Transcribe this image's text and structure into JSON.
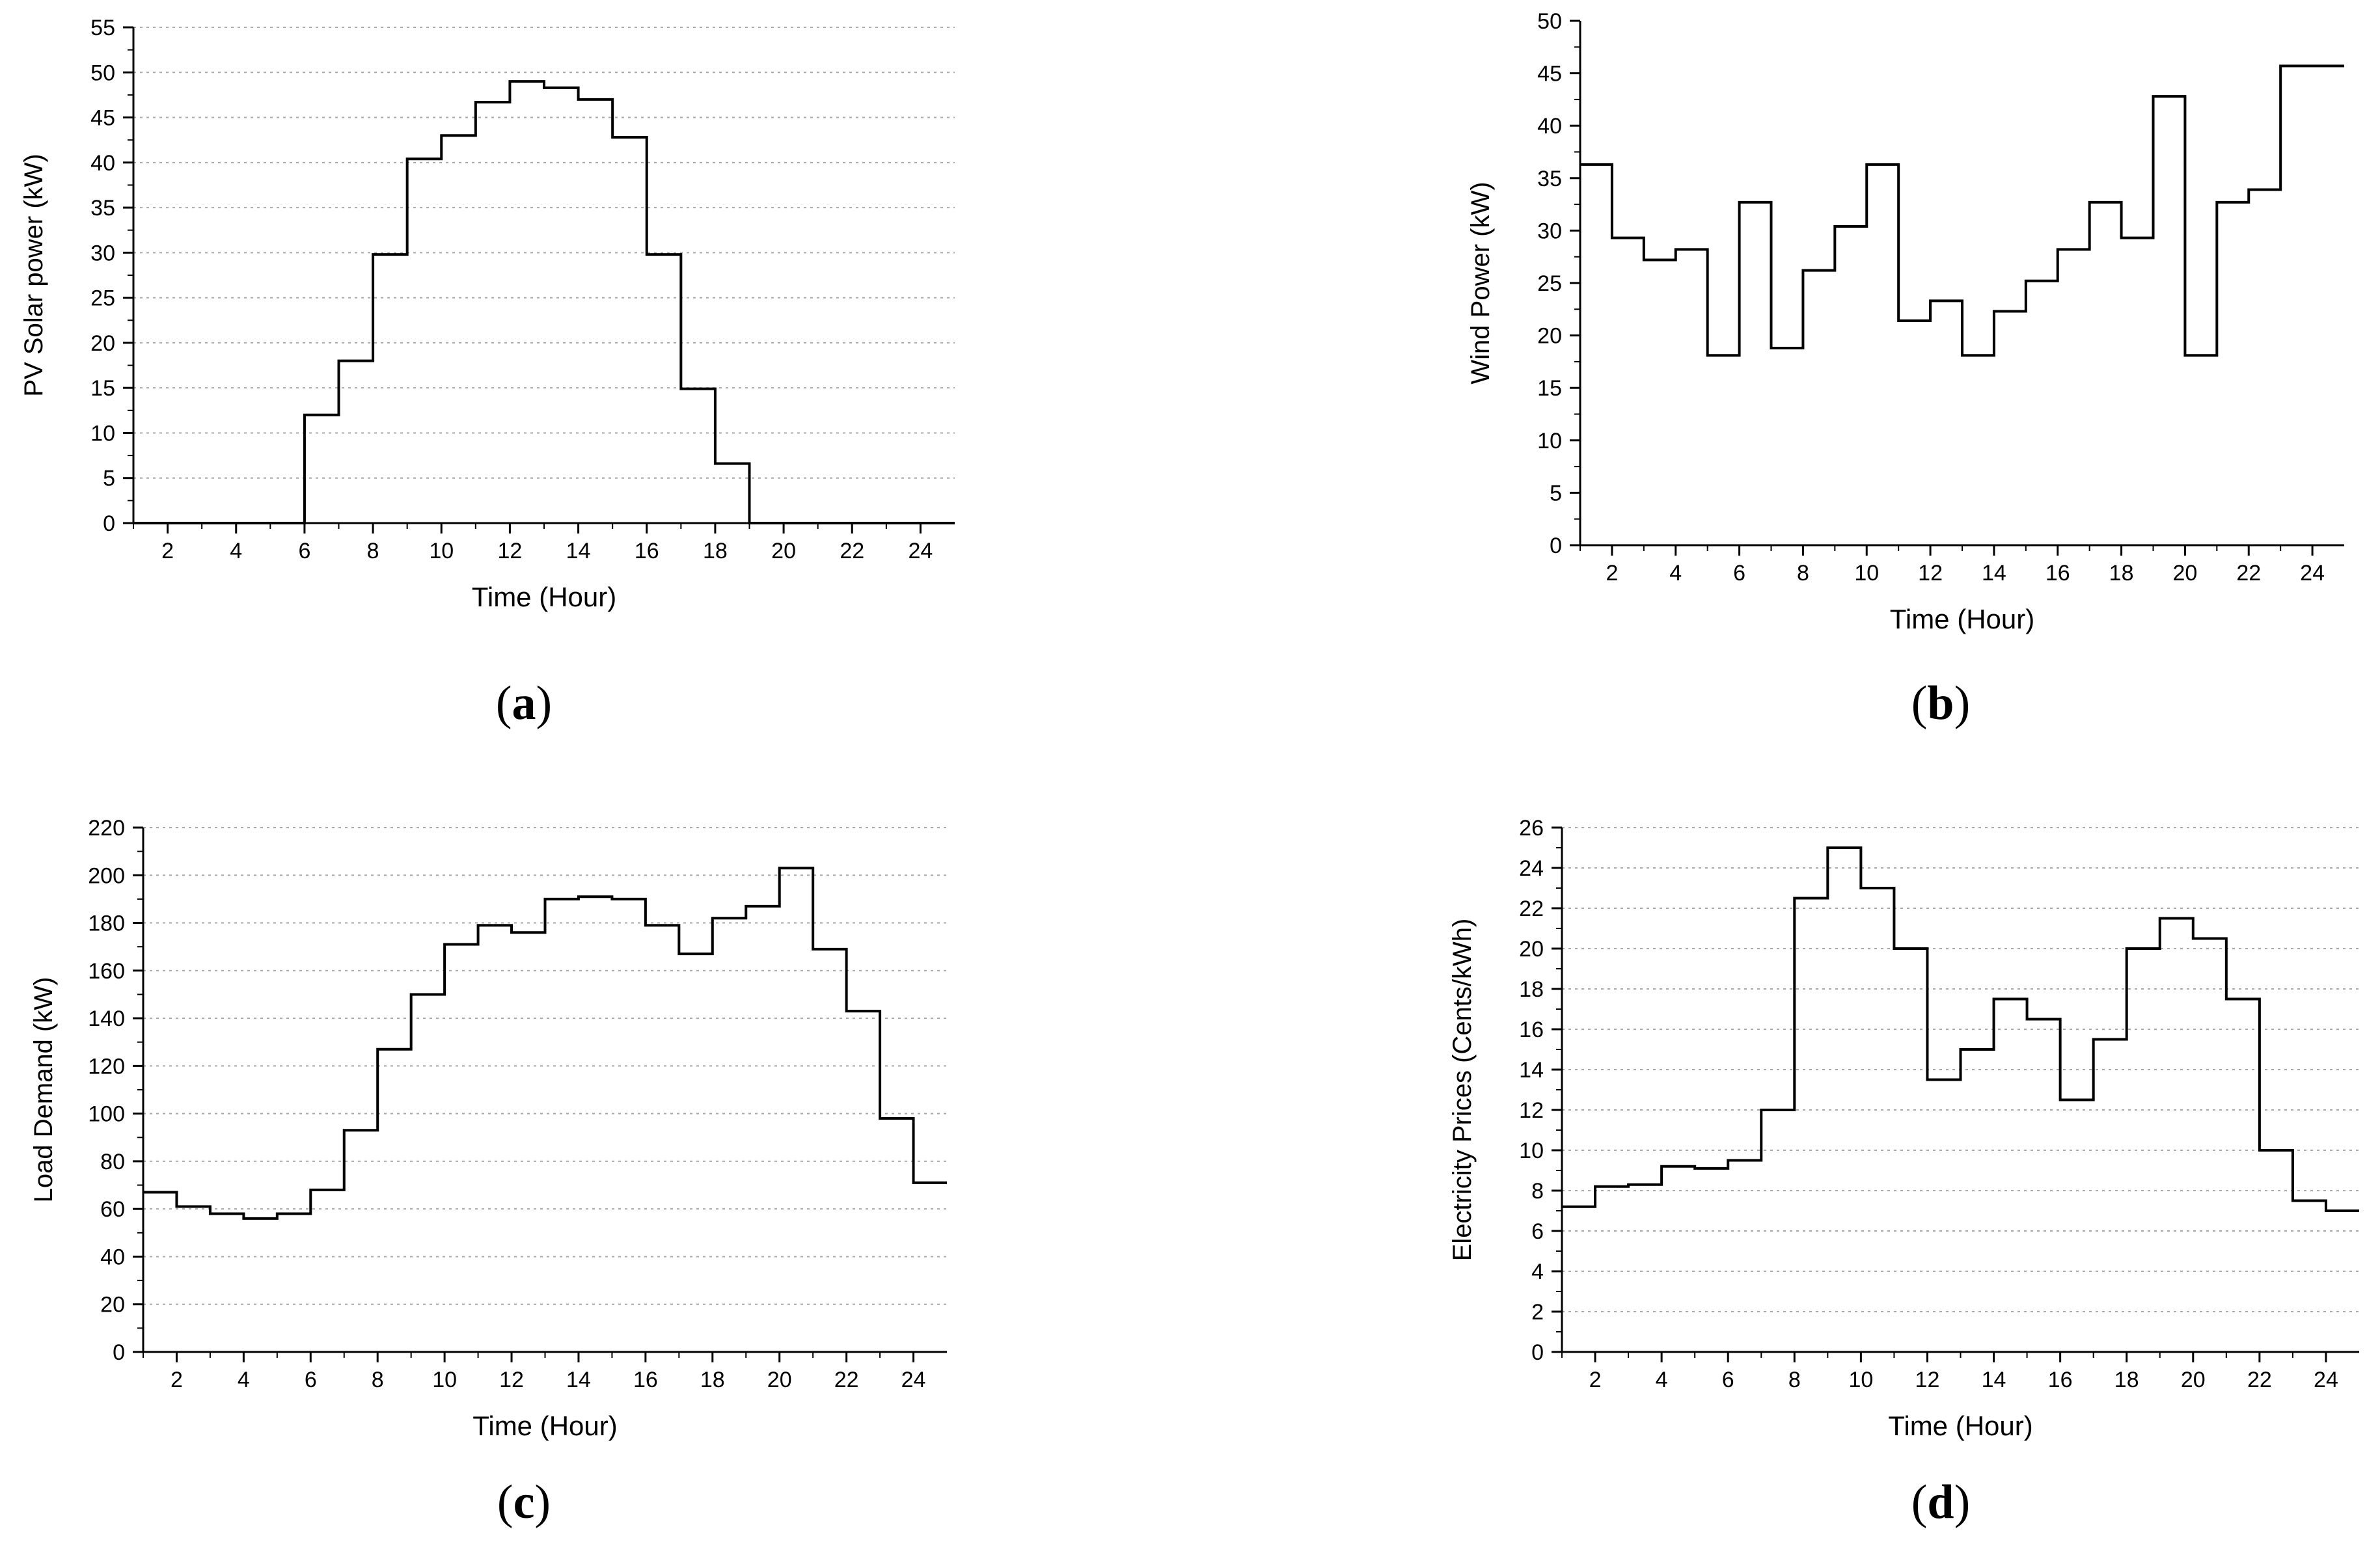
{
  "chart_data": [
    {
      "id": "a",
      "type": "line",
      "step": true,
      "panel_label": "a",
      "xlabel": "Time (Hour)",
      "ylabel": "PV Solar power (kW)",
      "xlim": [
        1,
        24
      ],
      "ylim": [
        0,
        55
      ],
      "x_ticks": [
        2,
        4,
        6,
        8,
        10,
        12,
        14,
        16,
        18,
        20,
        22,
        24
      ],
      "y_ticks": [
        0,
        5,
        10,
        15,
        20,
        25,
        30,
        35,
        40,
        45,
        50,
        55
      ],
      "grid": true,
      "x": [
        1,
        2,
        3,
        4,
        5,
        6,
        7,
        8,
        9,
        10,
        11,
        12,
        13,
        14,
        15,
        16,
        17,
        18,
        19,
        20,
        21,
        22,
        23,
        24
      ],
      "values": [
        0,
        0,
        0,
        0,
        0,
        12,
        18,
        29.8,
        40.4,
        43,
        46.7,
        49,
        48.3,
        47,
        42.8,
        29.8,
        14.9,
        6.6,
        0,
        0,
        0,
        0,
        0,
        0
      ]
    },
    {
      "id": "b",
      "type": "line",
      "step": true,
      "panel_label": "b",
      "xlabel": "Time (Hour)",
      "ylabel": "Wind Power (kW)",
      "xlim": [
        1,
        24
      ],
      "ylim": [
        0,
        50
      ],
      "x_ticks": [
        2,
        4,
        6,
        8,
        10,
        12,
        14,
        16,
        18,
        20,
        22,
        24
      ],
      "y_ticks": [
        0,
        5,
        10,
        15,
        20,
        25,
        30,
        35,
        40,
        45,
        50
      ],
      "grid": false,
      "x": [
        1,
        2,
        3,
        4,
        5,
        6,
        7,
        8,
        9,
        10,
        11,
        12,
        13,
        14,
        15,
        16,
        17,
        18,
        19,
        20,
        21,
        22,
        23,
        24
      ],
      "values": [
        36.3,
        29.3,
        27.2,
        28.2,
        18.1,
        32.7,
        18.8,
        26.2,
        30.4,
        36.3,
        21.4,
        23.3,
        18.1,
        22.3,
        25.2,
        28.2,
        32.7,
        29.3,
        42.8,
        18.1,
        32.7,
        33.9,
        45.7,
        45.7
      ]
    },
    {
      "id": "c",
      "type": "line",
      "step": true,
      "panel_label": "c",
      "xlabel": "Time (Hour)",
      "ylabel": "Load Demand (kW)",
      "xlim": [
        1,
        24
      ],
      "ylim": [
        0,
        220
      ],
      "x_ticks": [
        2,
        4,
        6,
        8,
        10,
        12,
        14,
        16,
        18,
        20,
        22,
        24
      ],
      "y_ticks": [
        0,
        20,
        40,
        60,
        80,
        100,
        120,
        140,
        160,
        180,
        200,
        220
      ],
      "grid": true,
      "x": [
        1,
        2,
        3,
        4,
        5,
        6,
        7,
        8,
        9,
        10,
        11,
        12,
        13,
        14,
        15,
        16,
        17,
        18,
        19,
        20,
        21,
        22,
        23,
        24
      ],
      "values": [
        67,
        61,
        58,
        56,
        58,
        68,
        93,
        127,
        150,
        171,
        179,
        176,
        190,
        191,
        190,
        179,
        167,
        182,
        187,
        203,
        169,
        143,
        98,
        71
      ]
    },
    {
      "id": "d",
      "type": "line",
      "step": true,
      "panel_label": "d",
      "xlabel": "Time (Hour)",
      "ylabel": "Electricity Prices (Cents/kWh)",
      "xlim": [
        1,
        24
      ],
      "ylim": [
        0,
        26
      ],
      "x_ticks": [
        2,
        4,
        6,
        8,
        10,
        12,
        14,
        16,
        18,
        20,
        22,
        24
      ],
      "y_ticks": [
        0,
        2,
        4,
        6,
        8,
        10,
        12,
        14,
        16,
        18,
        20,
        22,
        24,
        26
      ],
      "grid": true,
      "x": [
        1,
        2,
        3,
        4,
        5,
        6,
        7,
        8,
        9,
        10,
        11,
        12,
        13,
        14,
        15,
        16,
        17,
        18,
        19,
        20,
        21,
        22,
        23,
        24
      ],
      "values": [
        7.2,
        8.2,
        8.3,
        9.2,
        9.1,
        9.5,
        12,
        22.5,
        25,
        23,
        20,
        13.5,
        15,
        17.5,
        16.5,
        12.5,
        15.5,
        20,
        21.5,
        20.5,
        17.5,
        10,
        7.5,
        7
      ]
    }
  ]
}
